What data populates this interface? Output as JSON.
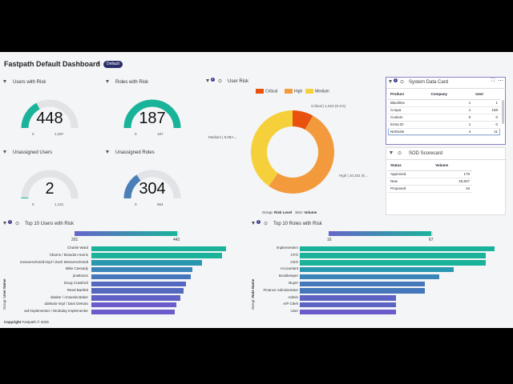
{
  "header": {
    "title": "Fastpath Default Dashboard",
    "caret": "▾",
    "badge": "Default"
  },
  "gauges": [
    {
      "title": "Users with Risk",
      "value": "448",
      "min": "0",
      "max": "1,297",
      "fraction": 0.345,
      "color": "#19b39a"
    },
    {
      "title": "Roles with Risk",
      "value": "187",
      "min": "0",
      "max": "187",
      "fraction": 1.0,
      "color": "#19b39a"
    },
    {
      "title": "Unassigned Users",
      "value": "2",
      "min": "0",
      "max": "1,131",
      "fraction": 0.002,
      "color": "#19b39a"
    },
    {
      "title": "Unassigned Roles",
      "value": "304",
      "min": "0",
      "max": "964",
      "fraction": 0.315,
      "color": "#4a7fb8"
    }
  ],
  "user_risk": {
    "title": "User Risk",
    "badge": "1",
    "legend": [
      {
        "label": "Critical",
        "color": "#e8510e"
      },
      {
        "label": "High",
        "color": "#f29a3c"
      },
      {
        "label": "Medium",
        "color": "#f6d03a"
      }
    ],
    "labels": {
      "critical": "Critical | 1,623 (8.1%)",
      "high": "High | 10,341 (5…",
      "medium": "Medium | 8,08A…"
    },
    "footer_group_label": "Group:",
    "footer_group_value": "Risk Level",
    "footer_size_label": "Size:",
    "footer_size_value": "Volume"
  },
  "chart_data": [
    {
      "type": "pie",
      "title": "User Risk",
      "categories": [
        "Critical",
        "High",
        "Medium"
      ],
      "values": [
        1623,
        10341,
        8084
      ],
      "colors": [
        "#e8510e",
        "#f29a3c",
        "#f6d03a"
      ],
      "legend": "top"
    },
    {
      "type": "bar",
      "title": "Top 10 Users with Risk",
      "ylabel": "User Name",
      "group_label": "Group:",
      "categories": [
        "Charlie Ward",
        "bharris / Brandon Harris",
        "messerschmidt-impl / Zach Messerschmidt",
        "Mike Cassady",
        "jmattsson",
        "Doug Crawford",
        "Reed Bartlett",
        "abaker / Amanda Baker",
        "ddekalo-impl / Dani DeKalo",
        "wd-implementer / Workday Implementer"
      ],
      "values": [
        442,
        430,
        362,
        332,
        326,
        310,
        303,
        291,
        280,
        273
      ],
      "colors": [
        "#1ab39a",
        "#1ab39a",
        "#2a97b0",
        "#3a84b8",
        "#4677ba",
        "#5468c0",
        "#5468c0",
        "#6060c6",
        "#6b5ccb",
        "#6b5ccb"
      ],
      "range": [
        "201",
        "442"
      ],
      "xlim": [
        201,
        442
      ]
    },
    {
      "type": "bar",
      "title": "Top 10 Roles with Risk",
      "ylabel": "Role Name",
      "group_label": "Group:",
      "categories": [
        "Implementers",
        "CFO",
        "CEO",
        "Accountant",
        "Bookkeeper",
        "Buyer",
        "Finance Administrator",
        "Admin",
        "A/P Clerk",
        "User"
      ],
      "values": [
        67,
        64,
        64,
        53,
        48,
        43,
        43,
        33,
        33,
        33
      ],
      "colors": [
        "#1ab39a",
        "#1ab39a",
        "#1ab39a",
        "#2a97b0",
        "#3a84b8",
        "#4677ba",
        "#4677ba",
        "#5d63c4",
        "#5d63c4",
        "#6b5ccb"
      ],
      "range": [
        "16",
        "67"
      ],
      "xlim": [
        16,
        67
      ]
    }
  ],
  "system_data": {
    "title": "System Data Card",
    "badge": "1",
    "columns": [
      "Product",
      "Company",
      "User"
    ],
    "rows": [
      [
        "Blackline",
        "1",
        "1"
      ],
      [
        "Coupa",
        "1",
        "158"
      ],
      [
        "Custom",
        "0",
        "0"
      ],
      [
        "Entra ID",
        "1",
        "0"
      ],
      [
        "NetSuite",
        "4",
        "11"
      ]
    ]
  },
  "sod": {
    "title": "SOD Scorecard",
    "columns": [
      "Status",
      "Volume"
    ],
    "rows": [
      [
        "Approved",
        "179"
      ],
      [
        "New",
        "40,837"
      ],
      [
        "Proposed",
        "16"
      ]
    ]
  },
  "top_users": {
    "title": "Top 10 Users with Risk",
    "badge": "1",
    "group_label": "Group:",
    "group_value": "User Name",
    "range_min": "201",
    "range_max": "442"
  },
  "top_roles": {
    "title": "Top 10 Roles with Risk",
    "badge": "1",
    "group_label": "Group:",
    "group_value": "Role Name",
    "range_min": "16",
    "range_max": "67"
  },
  "footer": {
    "copyright": "Copyright",
    "company": "Fastpath © 2025"
  }
}
